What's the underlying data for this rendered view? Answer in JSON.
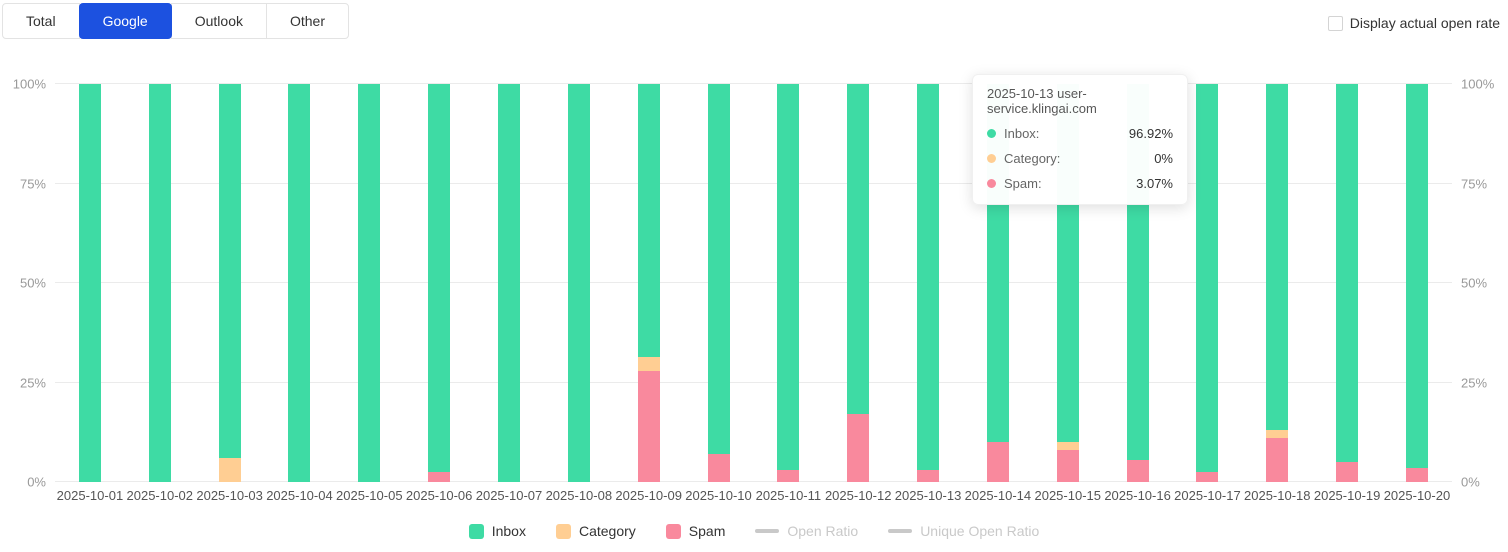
{
  "tabs": {
    "items": [
      {
        "label": "Total",
        "active": false
      },
      {
        "label": "Google",
        "active": true
      },
      {
        "label": "Outlook",
        "active": false
      },
      {
        "label": "Other",
        "active": false
      }
    ]
  },
  "controls": {
    "display_actual_open_rate": {
      "label": "Display actual open rate",
      "checked": false
    }
  },
  "colors": {
    "inbox": "#3edba4",
    "category": "#ffce93",
    "spam": "#f9899d",
    "active_tab": "#1c51e0",
    "disabled_legend": "#c9c9c9",
    "gridline": "#ebebeb",
    "axis_text": "#999999"
  },
  "chart_data": {
    "type": "bar",
    "stacked": true,
    "unit": "%",
    "categories": [
      "2025-10-01",
      "2025-10-02",
      "2025-10-03",
      "2025-10-04",
      "2025-10-05",
      "2025-10-06",
      "2025-10-07",
      "2025-10-08",
      "2025-10-09",
      "2025-10-10",
      "2025-10-11",
      "2025-10-12",
      "2025-10-13",
      "2025-10-14",
      "2025-10-15",
      "2025-10-16",
      "2025-10-17",
      "2025-10-18",
      "2025-10-19",
      "2025-10-20"
    ],
    "series": [
      {
        "name": "Inbox",
        "color": "#3edba4",
        "values": [
          100,
          100,
          94,
          100,
          100,
          97.5,
          100,
          100,
          68.5,
          93,
          97,
          83,
          96.92,
          90,
          90,
          94.5,
          97.5,
          87,
          95,
          96.5
        ]
      },
      {
        "name": "Category",
        "color": "#ffce93",
        "values": [
          0,
          0,
          6,
          0,
          0,
          0,
          0,
          0,
          3.5,
          0,
          0,
          0,
          0,
          0,
          2,
          0,
          0,
          2,
          0,
          0
        ]
      },
      {
        "name": "Spam",
        "color": "#f9899d",
        "values": [
          0,
          0,
          0,
          0,
          0,
          2.5,
          0,
          0,
          28,
          7,
          3,
          17,
          3.07,
          10,
          8,
          5.5,
          2.5,
          11,
          5,
          3.5
        ]
      }
    ],
    "y_ticks": [
      "0%",
      "25%",
      "50%",
      "75%",
      "100%"
    ],
    "ylim": [
      0,
      100
    ],
    "grid": true,
    "legend_position": "bottom"
  },
  "tooltip": {
    "title": "2025-10-13 user-service.klingai.com",
    "rows": [
      {
        "label": "Inbox:",
        "value": "96.92%",
        "color": "#3edba4"
      },
      {
        "label": "Category:",
        "value": "0%",
        "color": "#ffce93"
      },
      {
        "label": "Spam:",
        "value": "3.07%",
        "color": "#f9899d"
      }
    ]
  },
  "legend": {
    "items": [
      {
        "label": "Inbox",
        "marker": "square",
        "color": "#3edba4",
        "enabled": true
      },
      {
        "label": "Category",
        "marker": "square",
        "color": "#ffce93",
        "enabled": true
      },
      {
        "label": "Spam",
        "marker": "square",
        "color": "#f9899d",
        "enabled": true
      },
      {
        "label": "Open Ratio",
        "marker": "line",
        "color": "#c9c9c9",
        "enabled": false
      },
      {
        "label": "Unique Open Ratio",
        "marker": "line",
        "color": "#c9c9c9",
        "enabled": false
      }
    ]
  }
}
